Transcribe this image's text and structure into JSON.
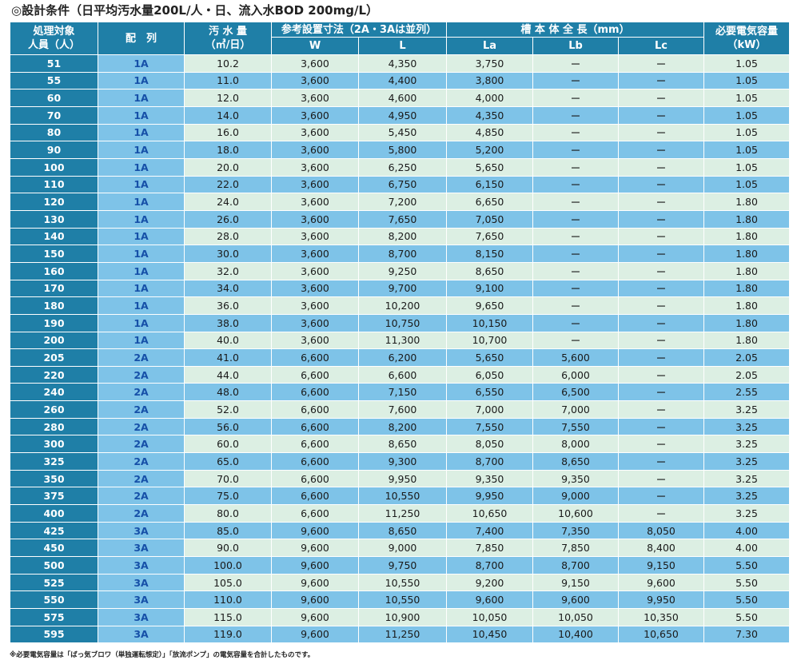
{
  "title": "◎設計条件（日平均汚水量200L/人・日、流入水BOD 200mg/L）",
  "headers": {
    "people_line1": "処理対象",
    "people_line2": "人員（人）",
    "layout": "配　列",
    "water_line1": "汚 水 量",
    "water_line2": "（㎥/日）",
    "ref_dims": "参考設置寸法（2A・3Aは並列）",
    "W": "W",
    "L": "L",
    "tank_length": "槽 本 体 全 長（mm）",
    "La": "La",
    "Lb": "Lb",
    "Lc": "Lc",
    "power_line1": "必要電気容量",
    "power_line2": "（kW）"
  },
  "rows": [
    [
      "51",
      "1A",
      "10.2",
      "3,600",
      "4,350",
      "3,750",
      "ー",
      "ー",
      "1.05"
    ],
    [
      "55",
      "1A",
      "11.0",
      "3,600",
      "4,400",
      "3,800",
      "ー",
      "ー",
      "1.05"
    ],
    [
      "60",
      "1A",
      "12.0",
      "3,600",
      "4,600",
      "4,000",
      "ー",
      "ー",
      "1.05"
    ],
    [
      "70",
      "1A",
      "14.0",
      "3,600",
      "4,950",
      "4,350",
      "ー",
      "ー",
      "1.05"
    ],
    [
      "80",
      "1A",
      "16.0",
      "3,600",
      "5,450",
      "4,850",
      "ー",
      "ー",
      "1.05"
    ],
    [
      "90",
      "1A",
      "18.0",
      "3,600",
      "5,800",
      "5,200",
      "ー",
      "ー",
      "1.05"
    ],
    [
      "100",
      "1A",
      "20.0",
      "3,600",
      "6,250",
      "5,650",
      "ー",
      "ー",
      "1.05"
    ],
    [
      "110",
      "1A",
      "22.0",
      "3,600",
      "6,750",
      "6,150",
      "ー",
      "ー",
      "1.05"
    ],
    [
      "120",
      "1A",
      "24.0",
      "3,600",
      "7,200",
      "6,650",
      "ー",
      "ー",
      "1.80"
    ],
    [
      "130",
      "1A",
      "26.0",
      "3,600",
      "7,650",
      "7,050",
      "ー",
      "ー",
      "1.80"
    ],
    [
      "140",
      "1A",
      "28.0",
      "3,600",
      "8,200",
      "7,650",
      "ー",
      "ー",
      "1.80"
    ],
    [
      "150",
      "1A",
      "30.0",
      "3,600",
      "8,700",
      "8,150",
      "ー",
      "ー",
      "1.80"
    ],
    [
      "160",
      "1A",
      "32.0",
      "3,600",
      "9,250",
      "8,650",
      "ー",
      "ー",
      "1.80"
    ],
    [
      "170",
      "1A",
      "34.0",
      "3,600",
      "9,700",
      "9,100",
      "ー",
      "ー",
      "1.80"
    ],
    [
      "180",
      "1A",
      "36.0",
      "3,600",
      "10,200",
      "9,650",
      "ー",
      "ー",
      "1.80"
    ],
    [
      "190",
      "1A",
      "38.0",
      "3,600",
      "10,750",
      "10,150",
      "ー",
      "ー",
      "1.80"
    ],
    [
      "200",
      "1A",
      "40.0",
      "3,600",
      "11,300",
      "10,700",
      "ー",
      "ー",
      "1.80"
    ],
    [
      "205",
      "2A",
      "41.0",
      "6,600",
      "6,200",
      "5,650",
      "5,600",
      "ー",
      "2.05"
    ],
    [
      "220",
      "2A",
      "44.0",
      "6,600",
      "6,600",
      "6,050",
      "6,000",
      "ー",
      "2.05"
    ],
    [
      "240",
      "2A",
      "48.0",
      "6,600",
      "7,150",
      "6,550",
      "6,500",
      "ー",
      "2.55"
    ],
    [
      "260",
      "2A",
      "52.0",
      "6,600",
      "7,600",
      "7,000",
      "7,000",
      "ー",
      "3.25"
    ],
    [
      "280",
      "2A",
      "56.0",
      "6,600",
      "8,200",
      "7,550",
      "7,550",
      "ー",
      "3.25"
    ],
    [
      "300",
      "2A",
      "60.0",
      "6,600",
      "8,650",
      "8,050",
      "8,000",
      "ー",
      "3.25"
    ],
    [
      "325",
      "2A",
      "65.0",
      "6,600",
      "9,300",
      "8,700",
      "8,650",
      "ー",
      "3.25"
    ],
    [
      "350",
      "2A",
      "70.0",
      "6,600",
      "9,950",
      "9,350",
      "9,350",
      "ー",
      "3.25"
    ],
    [
      "375",
      "2A",
      "75.0",
      "6,600",
      "10,550",
      "9,950",
      "9,000",
      "ー",
      "3.25"
    ],
    [
      "400",
      "2A",
      "80.0",
      "6,600",
      "11,250",
      "10,650",
      "10,600",
      "ー",
      "3.25"
    ],
    [
      "425",
      "3A",
      "85.0",
      "9,600",
      "8,650",
      "7,400",
      "7,350",
      "8,050",
      "4.00"
    ],
    [
      "450",
      "3A",
      "90.0",
      "9,600",
      "9,000",
      "7,850",
      "7,850",
      "8,400",
      "4.00"
    ],
    [
      "500",
      "3A",
      "100.0",
      "9,600",
      "9,750",
      "8,700",
      "8,700",
      "9,150",
      "5.50"
    ],
    [
      "525",
      "3A",
      "105.0",
      "9,600",
      "10,550",
      "9,200",
      "9,150",
      "9,600",
      "5.50"
    ],
    [
      "550",
      "3A",
      "110.0",
      "9,600",
      "10,550",
      "9,600",
      "9,600",
      "9,950",
      "5.50"
    ],
    [
      "575",
      "3A",
      "115.0",
      "9,600",
      "10,900",
      "10,050",
      "10,050",
      "10,350",
      "5.50"
    ],
    [
      "595",
      "3A",
      "119.0",
      "9,600",
      "11,250",
      "10,450",
      "10,400",
      "10,650",
      "7.30"
    ]
  ],
  "footnote": "※必要電気容量は「ばっ気ブロワ（単独運転想定）」「放流ポンプ」の電気容量を合計したものです。",
  "colors": {
    "header_bg": "#1f7fa7",
    "row_light": "#dcefe3",
    "row_blue": "#7ec3e8",
    "layout_text": "#1650a8"
  }
}
